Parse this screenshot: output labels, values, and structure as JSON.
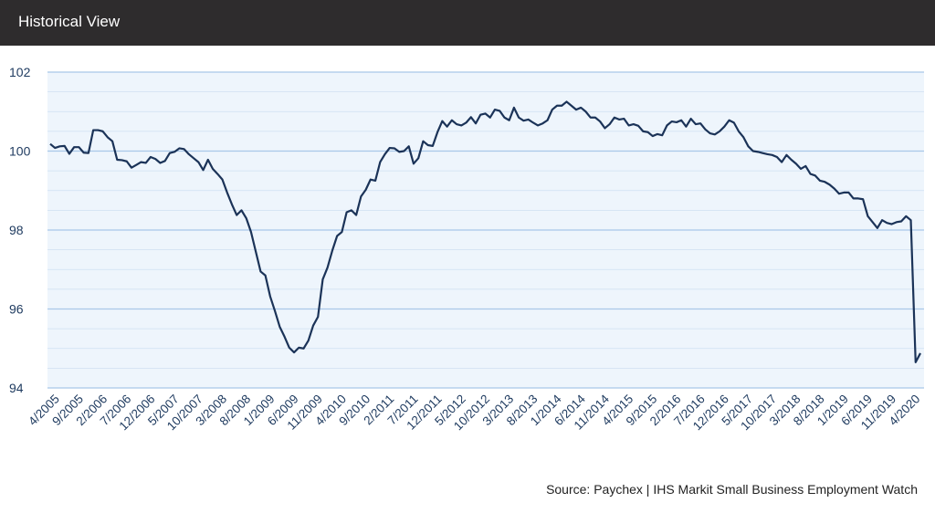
{
  "header": {
    "title": "Historical View"
  },
  "source": "Source: Paychex | IHS Markit Small Business Employment Watch",
  "colors": {
    "line": "#1b3358",
    "plot_bg": "#eef5fc",
    "grid": "#bcd4ec",
    "header_bg": "#2e2c2d"
  },
  "chart_data": {
    "type": "line",
    "title": "",
    "xlabel": "",
    "ylabel": "",
    "ylim": [
      94,
      102
    ],
    "yticks": [
      94,
      96,
      98,
      100,
      102
    ],
    "grid": true,
    "start": "4/2005",
    "x_tick_labels": [
      "4/2005",
      "9/2005",
      "2/2006",
      "7/2006",
      "12/2006",
      "5/2007",
      "10/2007",
      "3/2008",
      "8/2008",
      "1/2009",
      "6/2009",
      "11/2009",
      "4/2010",
      "9/2010",
      "2/2011",
      "7/2011",
      "12/2011",
      "5/2012",
      "10/2012",
      "3/2013",
      "8/2013",
      "1/2014",
      "6/2014",
      "11/2014",
      "4/2015",
      "9/2015",
      "2/2016",
      "7/2016",
      "12/2016",
      "5/2017",
      "10/2017",
      "3/2018",
      "8/2018",
      "1/2019",
      "6/2019",
      "11/2019",
      "4/2020"
    ],
    "series": [
      {
        "values": [
          100.18,
          100.08,
          100.12,
          100.13,
          99.93,
          100.1,
          100.1,
          99.96,
          99.95,
          100.53,
          100.53,
          100.5,
          100.35,
          100.25,
          99.78,
          99.77,
          99.74,
          99.58,
          99.65,
          99.72,
          99.7,
          99.85,
          99.8,
          99.7,
          99.75,
          99.95,
          99.98,
          100.07,
          100.05,
          99.92,
          99.82,
          99.72,
          99.52,
          99.78,
          99.55,
          99.42,
          99.28,
          98.95,
          98.65,
          98.38,
          98.5,
          98.3,
          97.95,
          97.45,
          96.95,
          96.85,
          96.32,
          95.95,
          95.55,
          95.3,
          95.02,
          94.9,
          95.02,
          95.0,
          95.2,
          95.58,
          95.8,
          96.75,
          97.05,
          97.48,
          97.85,
          97.95,
          98.45,
          98.5,
          98.38,
          98.85,
          99.02,
          99.28,
          99.25,
          99.72,
          99.92,
          100.08,
          100.07,
          99.98,
          100.0,
          100.12,
          99.68,
          99.82,
          100.25,
          100.15,
          100.13,
          100.48,
          100.76,
          100.62,
          100.78,
          100.68,
          100.65,
          100.72,
          100.86,
          100.7,
          100.92,
          100.95,
          100.85,
          101.05,
          101.02,
          100.85,
          100.78,
          101.1,
          100.85,
          100.77,
          100.8,
          100.72,
          100.65,
          100.7,
          100.78,
          101.05,
          101.15,
          101.15,
          101.25,
          101.15,
          101.05,
          101.1,
          101.0,
          100.85,
          100.85,
          100.75,
          100.58,
          100.68,
          100.85,
          100.8,
          100.82,
          100.65,
          100.68,
          100.64,
          100.5,
          100.48,
          100.38,
          100.43,
          100.4,
          100.65,
          100.75,
          100.73,
          100.78,
          100.62,
          100.82,
          100.68,
          100.7,
          100.55,
          100.45,
          100.42,
          100.5,
          100.62,
          100.78,
          100.72,
          100.5,
          100.35,
          100.12,
          100.0,
          99.98,
          99.95,
          99.92,
          99.9,
          99.85,
          99.72,
          99.9,
          99.78,
          99.68,
          99.55,
          99.62,
          99.42,
          99.38,
          99.25,
          99.22,
          99.15,
          99.05,
          98.92,
          98.95,
          98.95,
          98.8,
          98.8,
          98.78,
          98.35,
          98.2,
          98.05,
          98.25,
          98.18,
          98.15,
          98.2,
          98.22,
          98.35,
          98.25,
          94.65,
          94.88
        ]
      }
    ]
  }
}
